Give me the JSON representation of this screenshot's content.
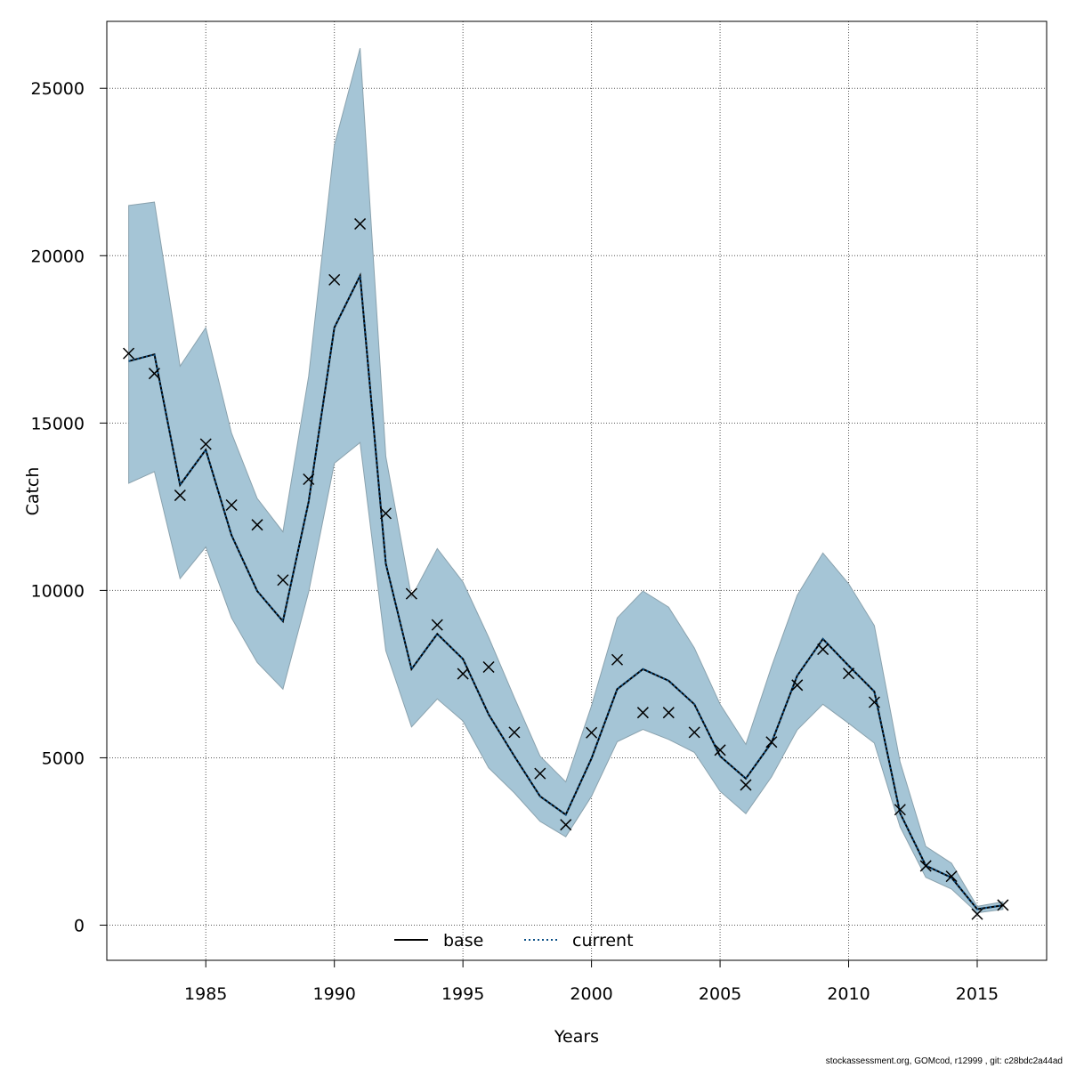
{
  "chart_data": {
    "type": "line",
    "title": "",
    "xlabel": "Years",
    "ylabel": "Catch",
    "xlim": [
      1981.15,
      2017.7
    ],
    "ylim": [
      -1050,
      27000
    ],
    "x_ticks": [
      1985,
      1990,
      1995,
      2000,
      2005,
      2010,
      2015
    ],
    "y_ticks": [
      0,
      5000,
      10000,
      15000,
      20000,
      25000
    ],
    "grid": true,
    "legend_position": "bottom",
    "colors": {
      "band": "#a5c5d6",
      "band_edge": "#8aa2ae",
      "current": "#0a4f86",
      "base": "#000000",
      "observed": "#000000"
    },
    "years": [
      1982,
      1983,
      1984,
      1985,
      1986,
      1987,
      1988,
      1989,
      1990,
      1991,
      1992,
      1993,
      1994,
      1995,
      1996,
      1997,
      1998,
      1999,
      2000,
      2001,
      2002,
      2003,
      2004,
      2005,
      2006,
      2007,
      2008,
      2009,
      2010,
      2011,
      2012,
      2013,
      2014,
      2015,
      2016
    ],
    "series": [
      {
        "name": "base",
        "style": "solid",
        "values": [
          16850,
          17050,
          13150,
          14200,
          11650,
          9980,
          9080,
          12650,
          17850,
          19400,
          10800,
          7650,
          8700,
          7950,
          6300,
          5050,
          3850,
          3300,
          4980,
          7050,
          7650,
          7300,
          6600,
          5050,
          4380,
          5450,
          7450,
          8550,
          7750,
          6980,
          3350,
          1780,
          1420,
          480,
          590
        ]
      },
      {
        "name": "current",
        "style": "dotted",
        "values": [
          16850,
          17050,
          13150,
          14200,
          11650,
          9980,
          9080,
          12650,
          17850,
          19400,
          10800,
          7650,
          8700,
          7950,
          6300,
          5050,
          3850,
          3300,
          4980,
          7050,
          7650,
          7300,
          6600,
          5050,
          4380,
          5450,
          7450,
          8550,
          7750,
          6980,
          3350,
          1780,
          1420,
          480,
          590
        ]
      }
    ],
    "band": {
      "upper": [
        21500,
        21600,
        16700,
        17850,
        14700,
        12750,
        11750,
        16400,
        23300,
        26200,
        14000,
        9800,
        11250,
        10250,
        8600,
        6800,
        5050,
        4280,
        6550,
        9180,
        9980,
        9500,
        8280,
        6600,
        5400,
        7720,
        9850,
        11120,
        10200,
        8950,
        4880,
        2350,
        1850,
        560,
        700
      ],
      "lower": [
        13200,
        13550,
        10350,
        11300,
        9180,
        7850,
        7050,
        9950,
        13800,
        14420,
        8200,
        5920,
        6760,
        6100,
        4700,
        3950,
        3100,
        2640,
        3850,
        5480,
        5850,
        5550,
        5160,
        4000,
        3330,
        4430,
        5830,
        6600,
        6030,
        5440,
        2940,
        1430,
        1080,
        370,
        470
      ]
    },
    "observed": [
      17080,
      16480,
      12840,
      14370,
      12550,
      11960,
      10310,
      13320,
      19280,
      20950,
      12300,
      9900,
      8970,
      7510,
      7710,
      5760,
      4530,
      3000,
      5750,
      7930,
      6350,
      6350,
      5760,
      5230,
      4190,
      5470,
      7170,
      8240,
      7520,
      6660,
      3450,
      1770,
      1460,
      330,
      600
    ]
  },
  "footer": "stockassessment.org, GOMcod, r12999 , git: c28bdc2a44ad"
}
